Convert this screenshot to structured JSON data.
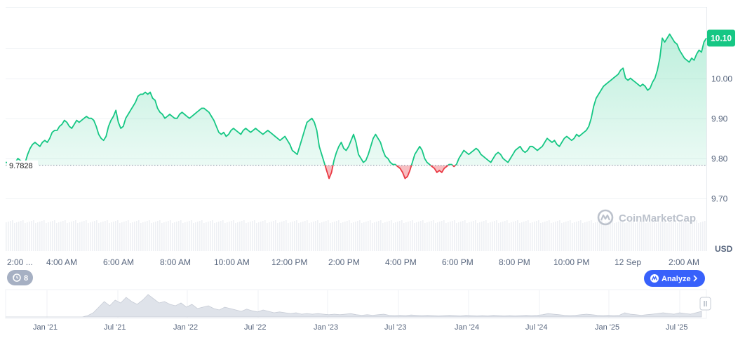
{
  "chart_data": {
    "type": "area",
    "currency": "USD",
    "current_price": "10.10",
    "reference_price": "9.7828",
    "reference_value": 9.7828,
    "ylim": [
      9.66,
      10.16
    ],
    "yticks": [
      {
        "label": "10.00",
        "value": 10.0
      },
      {
        "label": "9.90",
        "value": 9.9
      },
      {
        "label": "9.80",
        "value": 9.8
      },
      {
        "label": "9.70",
        "value": 9.7
      }
    ],
    "xticks": [
      "2:00 ...",
      "4:00 AM",
      "6:00 AM",
      "8:00 AM",
      "10:00 AM",
      "12:00 PM",
      "2:00 PM",
      "4:00 PM",
      "6:00 PM",
      "8:00 PM",
      "10:00 PM",
      "12 Sep",
      "2:00 AM"
    ],
    "series": [
      {
        "values": [
          9.79,
          9.79,
          9.79,
          9.785,
          9.79,
          9.8,
          9.795,
          9.79,
          9.79,
          9.81,
          9.825,
          9.835,
          9.84,
          9.835,
          9.83,
          9.84,
          9.845,
          9.84,
          9.85,
          9.865,
          9.87,
          9.87,
          9.88,
          9.885,
          9.895,
          9.89,
          9.88,
          9.875,
          9.885,
          9.895,
          9.89,
          9.895,
          9.9,
          9.905,
          9.9,
          9.9,
          9.895,
          9.88,
          9.86,
          9.85,
          9.845,
          9.855,
          9.88,
          9.895,
          9.905,
          9.92,
          9.89,
          9.875,
          9.88,
          9.9,
          9.91,
          9.92,
          9.93,
          9.94,
          9.955,
          9.96,
          9.96,
          9.965,
          9.96,
          9.965,
          9.95,
          9.945,
          9.925,
          9.915,
          9.91,
          9.9,
          9.905,
          9.91,
          9.905,
          9.9,
          9.9,
          9.91,
          9.915,
          9.91,
          9.905,
          9.9,
          9.905,
          9.91,
          9.915,
          9.92,
          9.925,
          9.925,
          9.92,
          9.915,
          9.905,
          9.895,
          9.88,
          9.865,
          9.86,
          9.865,
          9.855,
          9.86,
          9.87,
          9.875,
          9.87,
          9.865,
          9.86,
          9.87,
          9.875,
          9.87,
          9.865,
          9.87,
          9.875,
          9.87,
          9.865,
          9.86,
          9.865,
          9.87,
          9.865,
          9.86,
          9.855,
          9.85,
          9.845,
          9.85,
          9.855,
          9.845,
          9.835,
          9.82,
          9.815,
          9.81,
          9.83,
          9.85,
          9.87,
          9.89,
          9.895,
          9.9,
          9.89,
          9.87,
          9.83,
          9.81,
          9.79,
          9.77,
          9.75,
          9.765,
          9.795,
          9.815,
          9.83,
          9.84,
          9.825,
          9.82,
          9.83,
          9.845,
          9.86,
          9.84,
          9.81,
          9.8,
          9.79,
          9.795,
          9.81,
          9.83,
          9.85,
          9.86,
          9.85,
          9.84,
          9.82,
          9.805,
          9.8,
          9.79,
          9.785,
          9.785,
          9.78,
          9.775,
          9.765,
          9.75,
          9.755,
          9.77,
          9.79,
          9.81,
          9.82,
          9.83,
          9.82,
          9.8,
          9.79,
          9.785,
          9.78,
          9.775,
          9.765,
          9.77,
          9.765,
          9.775,
          9.78,
          9.785,
          9.785,
          9.78,
          9.785,
          9.8,
          9.81,
          9.82,
          9.815,
          9.81,
          9.815,
          9.82,
          9.825,
          9.82,
          9.81,
          9.805,
          9.8,
          9.795,
          9.79,
          9.8,
          9.81,
          9.815,
          9.81,
          9.8,
          9.795,
          9.79,
          9.8,
          9.81,
          9.82,
          9.825,
          9.83,
          9.82,
          9.815,
          9.82,
          9.83,
          9.83,
          9.825,
          9.82,
          9.825,
          9.83,
          9.84,
          9.85,
          9.845,
          9.84,
          9.845,
          9.835,
          9.83,
          9.84,
          9.85,
          9.855,
          9.85,
          9.845,
          9.85,
          9.86,
          9.855,
          9.86,
          9.865,
          9.87,
          9.88,
          9.9,
          9.93,
          9.95,
          9.96,
          9.97,
          9.98,
          9.985,
          9.99,
          9.995,
          10.0,
          10.005,
          10.01,
          10.02,
          10.025,
          10.0,
          9.995,
          10.0,
          9.995,
          9.99,
          9.985,
          9.98,
          9.985,
          9.98,
          9.97,
          9.975,
          9.99,
          10.0,
          10.02,
          10.05,
          10.1,
          10.09,
          10.1,
          10.11,
          10.1,
          10.09,
          10.085,
          10.07,
          10.06,
          10.05,
          10.045,
          10.04,
          10.05,
          10.045,
          10.06,
          10.07,
          10.065,
          10.09,
          10.1
        ]
      }
    ],
    "navigator": {
      "xticks": [
        "Jan '21",
        "Jul '21",
        "Jan '22",
        "Jul '22",
        "Jan '23",
        "Jul '23",
        "Jan '24",
        "Jul '24",
        "Jan '25",
        "Jul '25"
      ],
      "values": [
        0,
        0,
        0,
        0,
        0,
        0,
        0,
        0,
        0,
        0,
        0,
        0,
        0,
        0,
        0,
        0.05,
        0.15,
        0.35,
        0.55,
        0.4,
        0.6,
        0.5,
        0.7,
        0.55,
        0.45,
        0.6,
        0.8,
        0.65,
        0.5,
        0.55,
        0.45,
        0.4,
        0.5,
        0.35,
        0.45,
        0.3,
        0.35,
        0.4,
        0.3,
        0.25,
        0.35,
        0.3,
        0.25,
        0.2,
        0.28,
        0.22,
        0.18,
        0.25,
        0.2,
        0.15,
        0.18,
        0.15,
        0.12,
        0.15,
        0.1,
        0.12,
        0.1,
        0.12,
        0.1,
        0.08,
        0.1,
        0.08,
        0.1,
        0.12,
        0.08,
        0.06,
        0.08,
        0.06,
        0.08,
        0.1,
        0.06,
        0.05,
        0.06,
        0.05,
        0.07,
        0.06,
        0.05,
        0.06,
        0.05,
        0.04,
        0.05,
        0.06,
        0.05,
        0.04,
        0.06,
        0.05,
        0.04,
        0.05,
        0.04,
        0.06,
        0.05,
        0.04,
        0.05,
        0.04,
        0.05,
        0.06,
        0.05,
        0.06,
        0.08,
        0.12,
        0.1,
        0.08,
        0.06,
        0.05,
        0.06,
        0.08,
        0.1,
        0.08,
        0.06,
        0.05,
        0.06,
        0.05,
        0.06,
        0.15,
        0.1,
        0.08,
        0.06,
        0.08,
        0.1,
        0.12,
        0.15,
        0.12,
        0.1,
        0.15,
        0.12,
        0.1,
        0.15,
        0.2
      ]
    }
  },
  "badges": {
    "history_count": "8",
    "analyze_label": "Analyze"
  },
  "watermark": "CoinMarketCap",
  "colors": {
    "up": "#16c784",
    "down": "#ea3943",
    "badge_bg": "#16c784",
    "analyze_bg": "#3861fb",
    "history_bg": "#a6b0c3",
    "grid": "#eff2f5",
    "text": "#58667e"
  },
  "icons": {
    "history": "history-clock-icon",
    "analyze": "analyze-logo-icon",
    "chevron": "chevron-right-icon",
    "handle": "scroll-handle-icon"
  }
}
